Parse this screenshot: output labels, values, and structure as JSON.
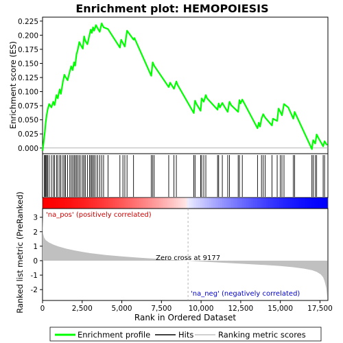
{
  "chart_data": {
    "type": "line",
    "title": "Enrichment plot: HEMOPOIESIS",
    "es_panel": {
      "ylabel": "Enrichment score (ES)",
      "ylim": [
        -0.01,
        0.232
      ],
      "yticks": [
        "0.000",
        "0.025",
        "0.050",
        "0.075",
        "0.100",
        "0.125",
        "0.150",
        "0.175",
        "0.200",
        "0.225"
      ],
      "ytick_values": [
        0,
        0.025,
        0.05,
        0.075,
        0.1,
        0.125,
        0.15,
        0.175,
        0.2,
        0.225
      ],
      "line_color": "#00ff00",
      "series": {
        "name": "Enrichment profile",
        "x": [
          0,
          80,
          150,
          200,
          260,
          320,
          420,
          560,
          680,
          760,
          880,
          960,
          1080,
          1160,
          1290,
          1380,
          1450,
          1580,
          1720,
          1810,
          1900,
          1990,
          2060,
          2140,
          2230,
          2320,
          2420,
          2540,
          2620,
          2700,
          2830,
          2960,
          3040,
          3110,
          3190,
          3260,
          3370,
          3480,
          3610,
          3730,
          3850,
          4130,
          4880,
          4960,
          5070,
          5190,
          5330,
          5740,
          5800,
          6860,
          6950,
          7040,
          7960,
          8050,
          8290,
          8440,
          8520,
          9540,
          9620,
          9710,
          9970,
          10040,
          10170,
          10300,
          10380,
          11040,
          11110,
          11190,
          11340,
          11460,
          11680,
          11790,
          11900,
          12340,
          12420,
          12490,
          12600,
          13560,
          13640,
          13720,
          13810,
          13920,
          14040,
          14470,
          14540,
          14800,
          14890,
          15000,
          15100,
          15230,
          15500,
          15820,
          15900,
          16990,
          17070,
          17200,
          17290,
          17400,
          17700,
          17790,
          17950
        ],
        "y": [
          -0.005,
          0.012,
          0.03,
          0.045,
          0.058,
          0.068,
          0.078,
          0.072,
          0.082,
          0.076,
          0.094,
          0.088,
          0.104,
          0.096,
          0.118,
          0.13,
          0.126,
          0.12,
          0.136,
          0.145,
          0.138,
          0.152,
          0.146,
          0.166,
          0.175,
          0.188,
          0.182,
          0.176,
          0.198,
          0.19,
          0.184,
          0.2,
          0.21,
          0.204,
          0.214,
          0.208,
          0.218,
          0.212,
          0.206,
          0.221,
          0.214,
          0.211,
          0.178,
          0.192,
          0.186,
          0.18,
          0.208,
          0.192,
          0.195,
          0.128,
          0.152,
          0.146,
          0.108,
          0.116,
          0.105,
          0.118,
          0.112,
          0.062,
          0.084,
          0.078,
          0.066,
          0.088,
          0.082,
          0.094,
          0.088,
          0.068,
          0.079,
          0.072,
          0.08,
          0.074,
          0.064,
          0.082,
          0.076,
          0.064,
          0.085,
          0.079,
          0.086,
          0.035,
          0.045,
          0.038,
          0.052,
          0.06,
          0.054,
          0.04,
          0.052,
          0.048,
          0.07,
          0.064,
          0.058,
          0.078,
          0.072,
          0.052,
          0.064,
          -0.002,
          0.014,
          0.008,
          0.024,
          0.018,
          0.003,
          0.012,
          0.005
        ]
      }
    },
    "hits": {
      "positions": [
        120,
        160,
        210,
        260,
        320,
        420,
        560,
        680,
        760,
        880,
        960,
        1080,
        1160,
        1290,
        1380,
        1450,
        1580,
        1720,
        1810,
        1900,
        1990,
        2060,
        2140,
        2230,
        2320,
        2420,
        2540,
        2620,
        2700,
        2830,
        2960,
        3040,
        3110,
        3190,
        3260,
        3370,
        3480,
        3610,
        3730,
        3850,
        4130,
        4880,
        5070,
        5190,
        5330,
        5740,
        6860,
        6950,
        7040,
        7960,
        8290,
        8440,
        9540,
        9620,
        9970,
        10040,
        10170,
        10300,
        11040,
        11110,
        11340,
        11680,
        11790,
        12340,
        12420,
        12600,
        13560,
        13810,
        13920,
        14040,
        14470,
        14800,
        15000,
        15100,
        15230,
        15820,
        15900,
        16990,
        17070,
        17200,
        17290,
        17700,
        17790
      ]
    },
    "rank_metric": {
      "ylabel": "Ranked list metric (PreRanked)",
      "xlabel": "Rank in Ordered Dataset",
      "ylim": [
        -2.75,
        3.6
      ],
      "yticks": [
        "-2",
        "-1",
        "0",
        "1",
        "2",
        "3"
      ],
      "ytick_values": [
        -2,
        -1,
        0,
        1,
        2,
        3
      ],
      "xticks": [
        "0",
        "2,500",
        "5,000",
        "7,500",
        "10,000",
        "12,500",
        "15,000",
        "17,500"
      ],
      "xtick_values": [
        0,
        2500,
        5000,
        7500,
        10000,
        12500,
        15000,
        17500
      ],
      "xlim": [
        0,
        18000
      ],
      "n_genes": 17960,
      "zero_cross": 9177,
      "zero_cross_label": "Zero cross at 9177",
      "pos_label": "'na_pos' (positively correlated)",
      "neg_label": "'na_neg' (negatively correlated)",
      "curve": {
        "x": [
          0,
          30,
          100,
          200,
          400,
          700,
          1000,
          1500,
          2000,
          2500,
          3000,
          4000,
          5000,
          6000,
          7000,
          8000,
          9177,
          10000,
          11000,
          12000,
          13000,
          14000,
          15000,
          15800,
          16500,
          17000,
          17300,
          17550,
          17700,
          17800,
          17900,
          17960
        ],
        "y": [
          3.1,
          1.9,
          1.6,
          1.42,
          1.26,
          1.1,
          0.98,
          0.83,
          0.71,
          0.61,
          0.52,
          0.39,
          0.29,
          0.21,
          0.14,
          0.07,
          0.0,
          -0.06,
          -0.12,
          -0.18,
          -0.24,
          -0.3,
          -0.37,
          -0.45,
          -0.55,
          -0.66,
          -0.78,
          -0.95,
          -1.15,
          -1.45,
          -1.9,
          -2.55
        ]
      }
    },
    "legend": {
      "items": [
        {
          "label": "Enrichment profile",
          "color": "#00ff00"
        },
        {
          "label": "Hits",
          "color": "#000000"
        },
        {
          "label": "Ranking metric scores",
          "color": "#c0c0c0"
        }
      ]
    }
  }
}
